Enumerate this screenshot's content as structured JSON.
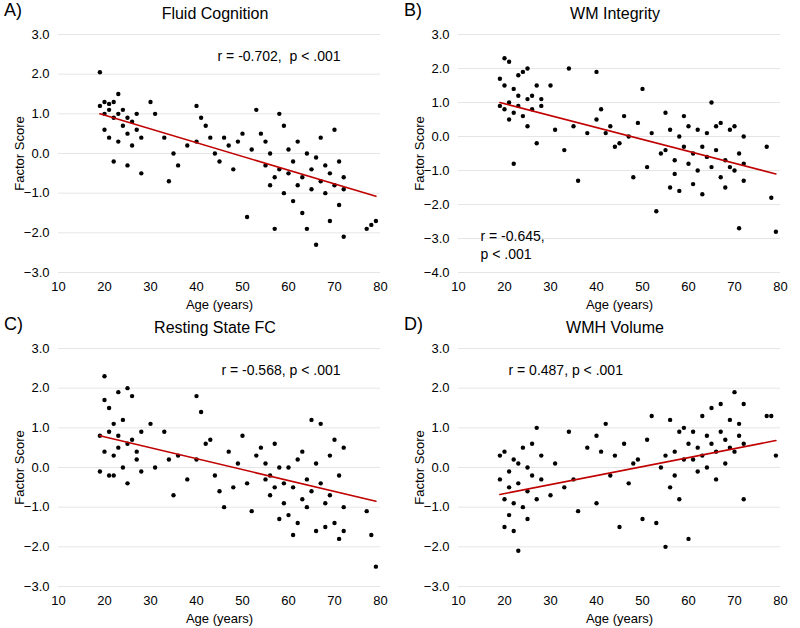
{
  "chart_data": [
    {
      "type": "scatter",
      "panel": "A)",
      "title": "Fluid Cognition",
      "x_label": "Age (years)",
      "y_label": "Factor Score",
      "xlim": [
        10,
        80
      ],
      "xticks": [
        10,
        20,
        30,
        40,
        50,
        60,
        70,
        80
      ],
      "ylim": [
        -3,
        3
      ],
      "yticks": [
        -3,
        -2,
        -1,
        0,
        1,
        2,
        3
      ],
      "grid": true,
      "annotation": [
        "r = -0.702,  p < .001"
      ],
      "color": "#000000",
      "x": [
        19,
        19,
        20,
        20,
        20,
        21,
        21,
        21,
        22,
        22,
        22,
        23,
        23,
        23,
        24,
        24,
        25,
        25,
        25,
        26,
        26,
        27,
        27,
        28,
        28,
        30,
        31,
        33,
        34,
        35,
        36,
        38,
        40,
        40,
        41,
        42,
        43,
        44,
        45,
        46,
        47,
        48,
        49,
        50,
        51,
        52,
        53,
        54,
        55,
        55,
        56,
        56,
        57,
        57,
        58,
        58,
        59,
        59,
        60,
        60,
        61,
        61,
        62,
        62,
        63,
        63,
        64,
        64,
        65,
        65,
        66,
        66,
        67,
        67,
        68,
        68,
        69,
        69,
        70,
        70,
        71,
        71,
        72,
        72,
        72,
        77,
        78,
        79
      ],
      "values": [
        2.05,
        1.2,
        1.3,
        1.0,
        0.6,
        1.25,
        1.1,
        0.4,
        1.3,
        0.9,
        -0.2,
        1.0,
        1.5,
        0.3,
        0.7,
        1.1,
        0.5,
        0.9,
        -0.3,
        0.8,
        0.2,
        1.0,
        0.6,
        -0.5,
        0.4,
        1.3,
        1.0,
        0.4,
        -0.7,
        0.0,
        -0.3,
        0.2,
        0.3,
        1.2,
        0.9,
        0.7,
        0.4,
        0.0,
        -0.2,
        0.4,
        0.2,
        -0.4,
        0.3,
        0.5,
        -1.6,
        0.1,
        1.1,
        0.5,
        0.3,
        -0.3,
        -0.8,
        0.0,
        -1.9,
        -0.6,
        1.0,
        -0.4,
        0.7,
        -1.0,
        -0.5,
        0.1,
        -1.2,
        -0.2,
        -0.8,
        0.3,
        -0.6,
        -1.5,
        -1.9,
        0.0,
        -0.4,
        -0.9,
        -2.3,
        -0.1,
        -0.7,
        0.4,
        -1.0,
        -0.3,
        -1.7,
        -0.5,
        0.6,
        -0.8,
        -1.3,
        -0.2,
        -2.1,
        -0.6,
        -0.9,
        -1.9,
        -1.8,
        -1.7
      ],
      "fit": {
        "x": [
          19,
          79
        ],
        "values": [
          1.0,
          -1.08
        ],
        "color": "#c00000"
      }
    },
    {
      "type": "scatter",
      "panel": "B)",
      "title": "WM Integrity",
      "x_label": "Age (years)",
      "y_label": "Factor Score",
      "xlim": [
        10,
        80
      ],
      "xticks": [
        10,
        20,
        30,
        40,
        50,
        60,
        70,
        80
      ],
      "ylim": [
        -4,
        3
      ],
      "yticks": [
        -4,
        -3,
        -2,
        -1,
        0,
        1,
        2,
        3
      ],
      "grid": true,
      "annotation": [
        "r = -0.645,",
        "p < .001"
      ],
      "color": "#000000",
      "x": [
        19,
        19,
        20,
        20,
        20,
        21,
        21,
        21,
        22,
        22,
        22,
        23,
        23,
        23,
        24,
        24,
        25,
        25,
        25,
        26,
        26,
        27,
        27,
        28,
        28,
        30,
        31,
        33,
        34,
        35,
        36,
        38,
        40,
        40,
        41,
        42,
        43,
        44,
        45,
        46,
        47,
        48,
        49,
        50,
        51,
        52,
        53,
        54,
        55,
        55,
        56,
        56,
        57,
        57,
        58,
        58,
        59,
        59,
        60,
        60,
        61,
        61,
        62,
        62,
        63,
        63,
        64,
        64,
        65,
        65,
        66,
        66,
        67,
        67,
        68,
        68,
        69,
        69,
        70,
        70,
        71,
        71,
        72,
        72,
        72,
        77,
        78,
        79
      ],
      "values": [
        1.7,
        0.9,
        2.3,
        1.5,
        0.8,
        2.2,
        1.0,
        0.5,
        1.4,
        -0.8,
        0.7,
        1.8,
        1.2,
        0.9,
        1.9,
        0.6,
        2.0,
        1.1,
        0.3,
        1.2,
        0.8,
        1.5,
        -0.2,
        0.9,
        1.1,
        1.5,
        0.2,
        -0.4,
        2.0,
        0.3,
        -1.3,
        0.1,
        1.9,
        0.5,
        0.8,
        0.1,
        0.3,
        -0.3,
        -0.2,
        0.6,
        0.0,
        -1.2,
        0.4,
        1.4,
        -0.9,
        0.1,
        -2.2,
        -0.5,
        0.7,
        -0.4,
        -1.5,
        0.2,
        -1.1,
        -0.7,
        0.0,
        -1.6,
        -0.3,
        0.6,
        -0.8,
        0.3,
        -1.4,
        -0.5,
        0.2,
        -1.0,
        -0.3,
        -1.7,
        0.1,
        -0.6,
        1.0,
        -0.9,
        0.3,
        -0.4,
        -1.2,
        0.4,
        -0.7,
        -1.5,
        0.2,
        -0.9,
        0.3,
        -1.0,
        -2.7,
        -0.5,
        0.0,
        -1.3,
        -0.8,
        -0.3,
        -1.8,
        -2.8
      ],
      "fit": {
        "x": [
          19,
          79
        ],
        "values": [
          1.0,
          -1.1
        ],
        "color": "#c00000"
      }
    },
    {
      "type": "scatter",
      "panel": "C)",
      "title": "Resting State FC",
      "x_label": "Age (years)",
      "y_label": "Factor Score",
      "xlim": [
        10,
        80
      ],
      "xticks": [
        10,
        20,
        30,
        40,
        50,
        60,
        70,
        80
      ],
      "ylim": [
        -3,
        3
      ],
      "yticks": [
        -3,
        -2,
        -1,
        0,
        1,
        2,
        3
      ],
      "grid": true,
      "annotation": [
        "r = -0.568, p < .001"
      ],
      "color": "#000000",
      "x": [
        19,
        19,
        20,
        20,
        20,
        21,
        21,
        21,
        22,
        22,
        22,
        23,
        23,
        23,
        24,
        24,
        25,
        25,
        25,
        26,
        26,
        27,
        27,
        28,
        28,
        30,
        31,
        33,
        34,
        35,
        36,
        38,
        40,
        40,
        41,
        42,
        43,
        44,
        45,
        46,
        47,
        48,
        49,
        50,
        51,
        52,
        53,
        54,
        55,
        55,
        56,
        56,
        57,
        57,
        58,
        58,
        59,
        59,
        60,
        60,
        61,
        61,
        62,
        62,
        63,
        63,
        64,
        64,
        65,
        65,
        66,
        66,
        67,
        67,
        68,
        68,
        69,
        69,
        70,
        70,
        71,
        71,
        72,
        72,
        72,
        77,
        78,
        79
      ],
      "values": [
        -0.1,
        0.8,
        2.3,
        1.7,
        0.4,
        1.5,
        -0.2,
        0.9,
        1.1,
        0.3,
        -0.2,
        0.8,
        1.9,
        0.5,
        0.0,
        1.2,
        0.6,
        2.0,
        -0.4,
        1.8,
        0.7,
        0.2,
        0.4,
        -0.1,
        0.9,
        1.1,
        0.0,
        0.9,
        0.2,
        -0.7,
        0.3,
        -0.3,
        0.2,
        1.8,
        1.4,
        0.6,
        0.7,
        -0.2,
        -0.6,
        -1.0,
        0.4,
        -0.5,
        0.1,
        0.8,
        -0.4,
        -1.1,
        0.3,
        0.5,
        -0.3,
        0.1,
        -0.7,
        -0.2,
        0.6,
        -0.5,
        -1.3,
        0.0,
        -0.9,
        -0.4,
        -1.2,
        0.0,
        -1.7,
        -0.5,
        0.2,
        -1.4,
        -0.8,
        0.4,
        -0.3,
        -1.0,
        1.2,
        -0.6,
        0.1,
        -1.6,
        -0.4,
        1.1,
        -0.9,
        -1.5,
        0.3,
        -0.7,
        -1.4,
        0.7,
        -1.8,
        -0.2,
        0.5,
        -1.0,
        -1.6,
        -1.1,
        -1.7,
        -2.5
      ],
      "fit": {
        "x": [
          19,
          79
        ],
        "values": [
          0.8,
          -0.85
        ],
        "color": "#c00000"
      }
    },
    {
      "type": "scatter",
      "panel": "D)",
      "title": "WMH Volume",
      "x_label": "Age (years)",
      "y_label": "Factor Score",
      "xlim": [
        10,
        80
      ],
      "xticks": [
        10,
        20,
        30,
        40,
        50,
        60,
        70,
        80
      ],
      "ylim": [
        -3,
        3
      ],
      "yticks": [
        -3,
        -2,
        -1,
        0,
        1,
        2,
        3
      ],
      "grid": true,
      "annotation": [
        "r = 0.487, p < .001"
      ],
      "color": "#000000",
      "x": [
        19,
        19,
        20,
        20,
        20,
        21,
        21,
        21,
        22,
        22,
        22,
        23,
        23,
        23,
        24,
        24,
        25,
        25,
        25,
        26,
        26,
        27,
        27,
        28,
        28,
        30,
        31,
        33,
        34,
        35,
        36,
        38,
        40,
        40,
        41,
        42,
        43,
        44,
        45,
        46,
        47,
        48,
        49,
        50,
        51,
        52,
        53,
        54,
        55,
        55,
        56,
        56,
        57,
        57,
        58,
        58,
        59,
        59,
        60,
        60,
        61,
        61,
        62,
        62,
        63,
        63,
        64,
        64,
        65,
        65,
        66,
        66,
        67,
        67,
        68,
        68,
        69,
        69,
        70,
        70,
        71,
        71,
        72,
        72,
        72,
        77,
        78,
        79
      ],
      "values": [
        -0.3,
        0.3,
        -1.5,
        -0.8,
        0.4,
        -1.2,
        -0.5,
        -0.1,
        -1.6,
        0.2,
        -0.9,
        -2.1,
        -0.4,
        0.1,
        -1.0,
        0.5,
        -0.6,
        -1.3,
        0.0,
        -0.2,
        0.6,
        -0.8,
        1.0,
        -0.3,
        0.3,
        -0.7,
        0.1,
        -0.5,
        0.9,
        -0.3,
        -1.1,
        0.5,
        0.8,
        -0.9,
        0.4,
        1.1,
        -0.2,
        0.3,
        -1.5,
        0.6,
        -0.4,
        0.1,
        0.2,
        -1.3,
        0.7,
        1.3,
        -1.4,
        0.0,
        -2.0,
        0.3,
        1.2,
        -0.5,
        0.4,
        -0.2,
        0.9,
        -0.8,
        1.0,
        0.2,
        0.6,
        -1.8,
        0.2,
        0.9,
        -0.1,
        0.5,
        1.3,
        0.3,
        0.8,
        0.0,
        0.6,
        1.5,
        0.4,
        -0.3,
        1.6,
        0.9,
        0.7,
        0.1,
        1.2,
        0.5,
        1.9,
        0.4,
        1.1,
        0.8,
        1.6,
        -0.8,
        0.6,
        1.3,
        1.3,
        0.3
      ],
      "fit": {
        "x": [
          19,
          79
        ],
        "values": [
          -0.68,
          0.68
        ],
        "color": "#c00000"
      }
    }
  ]
}
